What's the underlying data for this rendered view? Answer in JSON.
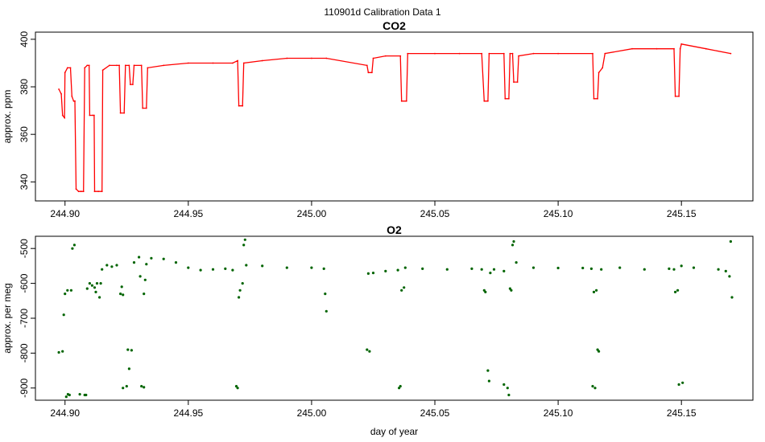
{
  "figure": {
    "title": "110901d   Calibration Data 1",
    "xlabel": "day of year"
  },
  "chart_data": [
    {
      "type": "line",
      "title": "CO2",
      "xlabel": "",
      "ylabel": "approx. ppm",
      "xlim": [
        244.888,
        245.179
      ],
      "ylim": [
        332,
        403
      ],
      "xticks": [
        244.9,
        244.95,
        245.0,
        245.05,
        245.1,
        245.15
      ],
      "xtick_labels": [
        "244.90",
        "244.95",
        "245.00",
        "245.05",
        "245.10",
        "245.15"
      ],
      "yticks": [
        340,
        360,
        380,
        400
      ],
      "ytick_labels": [
        "340",
        "360",
        "380",
        "400"
      ],
      "color": "#ff0000",
      "grid": false,
      "series": [
        {
          "values": [
            [
              244.8975,
              379
            ],
            [
              244.8985,
              377
            ],
            [
              244.899,
              368
            ],
            [
              244.8998,
              367
            ],
            [
              244.9,
              386
            ],
            [
              244.901,
              388
            ],
            [
              244.9022,
              388
            ],
            [
              244.9028,
              376
            ],
            [
              244.9035,
              374
            ],
            [
              244.904,
              374
            ],
            [
              244.9045,
              337
            ],
            [
              244.9055,
              336
            ],
            [
              244.9065,
              336
            ],
            [
              244.9075,
              336
            ],
            [
              244.908,
              388
            ],
            [
              244.909,
              389
            ],
            [
              244.9098,
              389
            ],
            [
              244.91,
              368
            ],
            [
              244.9112,
              368
            ],
            [
              244.9118,
              368
            ],
            [
              244.912,
              336
            ],
            [
              244.9135,
              336
            ],
            [
              244.915,
              336
            ],
            [
              244.9153,
              387
            ],
            [
              244.918,
              389
            ],
            [
              244.921,
              389
            ],
            [
              244.922,
              389
            ],
            [
              244.9225,
              369
            ],
            [
              244.924,
              369
            ],
            [
              244.9245,
              389
            ],
            [
              244.926,
              389
            ],
            [
              244.9265,
              381
            ],
            [
              244.9275,
              381
            ],
            [
              244.928,
              389
            ],
            [
              244.931,
              389
            ],
            [
              244.9315,
              371
            ],
            [
              244.933,
              371
            ],
            [
              244.9335,
              388
            ],
            [
              244.94,
              389
            ],
            [
              244.95,
              390
            ],
            [
              244.96,
              390
            ],
            [
              244.968,
              390
            ],
            [
              244.97,
              391
            ],
            [
              244.9705,
              372
            ],
            [
              244.972,
              372
            ],
            [
              244.9725,
              390
            ],
            [
              244.98,
              391
            ],
            [
              244.99,
              392
            ],
            [
              245.0,
              392
            ],
            [
              245.006,
              392
            ],
            [
              245.0225,
              389
            ],
            [
              245.023,
              386
            ],
            [
              245.0245,
              386
            ],
            [
              245.025,
              392
            ],
            [
              245.03,
              393
            ],
            [
              245.036,
              393
            ],
            [
              245.0365,
              374
            ],
            [
              245.0385,
              374
            ],
            [
              245.039,
              394
            ],
            [
              245.05,
              394
            ],
            [
              245.06,
              394
            ],
            [
              245.069,
              394
            ],
            [
              245.07,
              374
            ],
            [
              245.0715,
              374
            ],
            [
              245.072,
              394
            ],
            [
              245.078,
              394
            ],
            [
              245.0785,
              375
            ],
            [
              245.08,
              375
            ],
            [
              245.0805,
              394
            ],
            [
              245.0815,
              394
            ],
            [
              245.082,
              382
            ],
            [
              245.0835,
              382
            ],
            [
              245.084,
              393
            ],
            [
              245.09,
              394
            ],
            [
              245.1,
              394
            ],
            [
              245.114,
              394
            ],
            [
              245.1145,
              375
            ],
            [
              245.116,
              375
            ],
            [
              245.1165,
              386
            ],
            [
              245.118,
              388
            ],
            [
              245.119,
              394
            ],
            [
              245.13,
              396
            ],
            [
              245.14,
              396
            ],
            [
              245.147,
              396
            ],
            [
              245.1475,
              376
            ],
            [
              245.149,
              376
            ],
            [
              245.1495,
              396
            ],
            [
              245.15,
              398
            ],
            [
              245.16,
              396
            ],
            [
              245.17,
              394
            ]
          ]
        }
      ]
    },
    {
      "type": "scatter",
      "title": "O2",
      "xlabel": "day of year",
      "ylabel": "approx. per meg",
      "xlim": [
        244.888,
        245.179
      ],
      "ylim": [
        -935,
        -465
      ],
      "xticks": [
        244.9,
        244.95,
        245.0,
        245.05,
        245.1,
        245.15
      ],
      "xtick_labels": [
        "244.90",
        "244.95",
        "245.00",
        "245.05",
        "245.10",
        "245.15"
      ],
      "yticks": [
        -900,
        -800,
        -700,
        -600,
        -500
      ],
      "ytick_labels": [
        "-900",
        "-800",
        "-700",
        "-600",
        "-500"
      ],
      "color": "#006400",
      "grid": false,
      "series": [
        {
          "values": [
            [
              244.8975,
              -798
            ],
            [
              244.899,
              -795
            ],
            [
              244.8995,
              -690
            ],
            [
              244.9,
              -630
            ],
            [
              244.901,
              -620
            ],
            [
              244.9005,
              -925
            ],
            [
              244.9012,
              -918
            ],
            [
              244.9018,
              -920
            ],
            [
              244.9025,
              -620
            ],
            [
              244.903,
              -500
            ],
            [
              244.9038,
              -490
            ],
            [
              244.906,
              -918
            ],
            [
              244.908,
              -920
            ],
            [
              244.9085,
              -920
            ],
            [
              244.909,
              -615
            ],
            [
              244.91,
              -600
            ],
            [
              244.911,
              -606
            ],
            [
              244.912,
              -612
            ],
            [
              244.9125,
              -625
            ],
            [
              244.913,
              -600
            ],
            [
              244.914,
              -640
            ],
            [
              244.9145,
              -600
            ],
            [
              244.915,
              -560
            ],
            [
              244.917,
              -548
            ],
            [
              244.919,
              -552
            ],
            [
              244.921,
              -548
            ],
            [
              244.9225,
              -630
            ],
            [
              244.923,
              -610
            ],
            [
              244.9235,
              -633
            ],
            [
              244.9235,
              -900
            ],
            [
              244.925,
              -895
            ],
            [
              244.926,
              -845
            ],
            [
              244.9255,
              -790
            ],
            [
              244.927,
              -792
            ],
            [
              244.928,
              -540
            ],
            [
              244.93,
              -525
            ],
            [
              244.9305,
              -580
            ],
            [
              244.931,
              -895
            ],
            [
              244.932,
              -898
            ],
            [
              244.932,
              -630
            ],
            [
              244.9325,
              -590
            ],
            [
              244.933,
              -545
            ],
            [
              244.935,
              -528
            ],
            [
              244.94,
              -530
            ],
            [
              244.945,
              -540
            ],
            [
              244.95,
              -555
            ],
            [
              244.955,
              -562
            ],
            [
              244.96,
              -560
            ],
            [
              244.965,
              -558
            ],
            [
              244.968,
              -562
            ],
            [
              244.9695,
              -895
            ],
            [
              244.97,
              -900
            ],
            [
              244.9705,
              -640
            ],
            [
              244.971,
              -620
            ],
            [
              244.972,
              -600
            ],
            [
              244.9725,
              -490
            ],
            [
              244.973,
              -475
            ],
            [
              244.9735,
              -548
            ],
            [
              244.98,
              -550
            ],
            [
              244.99,
              -555
            ],
            [
              245.0,
              -555
            ],
            [
              245.005,
              -558
            ],
            [
              245.0055,
              -630
            ],
            [
              245.006,
              -680
            ],
            [
              245.0225,
              -790
            ],
            [
              245.0235,
              -795
            ],
            [
              245.023,
              -572
            ],
            [
              245.025,
              -570
            ],
            [
              245.03,
              -565
            ],
            [
              245.035,
              -562
            ],
            [
              245.0355,
              -900
            ],
            [
              245.036,
              -895
            ],
            [
              245.0365,
              -620
            ],
            [
              245.0375,
              -612
            ],
            [
              245.038,
              -555
            ],
            [
              245.045,
              -558
            ],
            [
              245.055,
              -560
            ],
            [
              245.065,
              -558
            ],
            [
              245.069,
              -560
            ],
            [
              245.07,
              -620
            ],
            [
              245.0705,
              -625
            ],
            [
              245.0715,
              -850
            ],
            [
              245.072,
              -880
            ],
            [
              245.0725,
              -570
            ],
            [
              245.074,
              -560
            ],
            [
              245.078,
              -565
            ],
            [
              245.078,
              -890
            ],
            [
              245.0795,
              -900
            ],
            [
              245.08,
              -920
            ],
            [
              245.0805,
              -615
            ],
            [
              245.081,
              -620
            ],
            [
              245.0815,
              -490
            ],
            [
              245.082,
              -480
            ],
            [
              245.083,
              -540
            ],
            [
              245.09,
              -555
            ],
            [
              245.1,
              -556
            ],
            [
              245.11,
              -556
            ],
            [
              245.1135,
              -558
            ],
            [
              245.114,
              -895
            ],
            [
              245.115,
              -900
            ],
            [
              245.1145,
              -625
            ],
            [
              245.1155,
              -620
            ],
            [
              245.116,
              -790
            ],
            [
              245.1165,
              -795
            ],
            [
              245.1175,
              -560
            ],
            [
              245.125,
              -555
            ],
            [
              245.135,
              -560
            ],
            [
              245.145,
              -558
            ],
            [
              245.147,
              -560
            ],
            [
              245.1475,
              -625
            ],
            [
              245.1485,
              -620
            ],
            [
              245.149,
              -890
            ],
            [
              245.1505,
              -885
            ],
            [
              245.15,
              -550
            ],
            [
              245.155,
              -555
            ],
            [
              245.165,
              -560
            ],
            [
              245.168,
              -565
            ],
            [
              245.1695,
              -580
            ],
            [
              245.17,
              -480
            ],
            [
              245.1705,
              -640
            ]
          ]
        }
      ]
    }
  ]
}
